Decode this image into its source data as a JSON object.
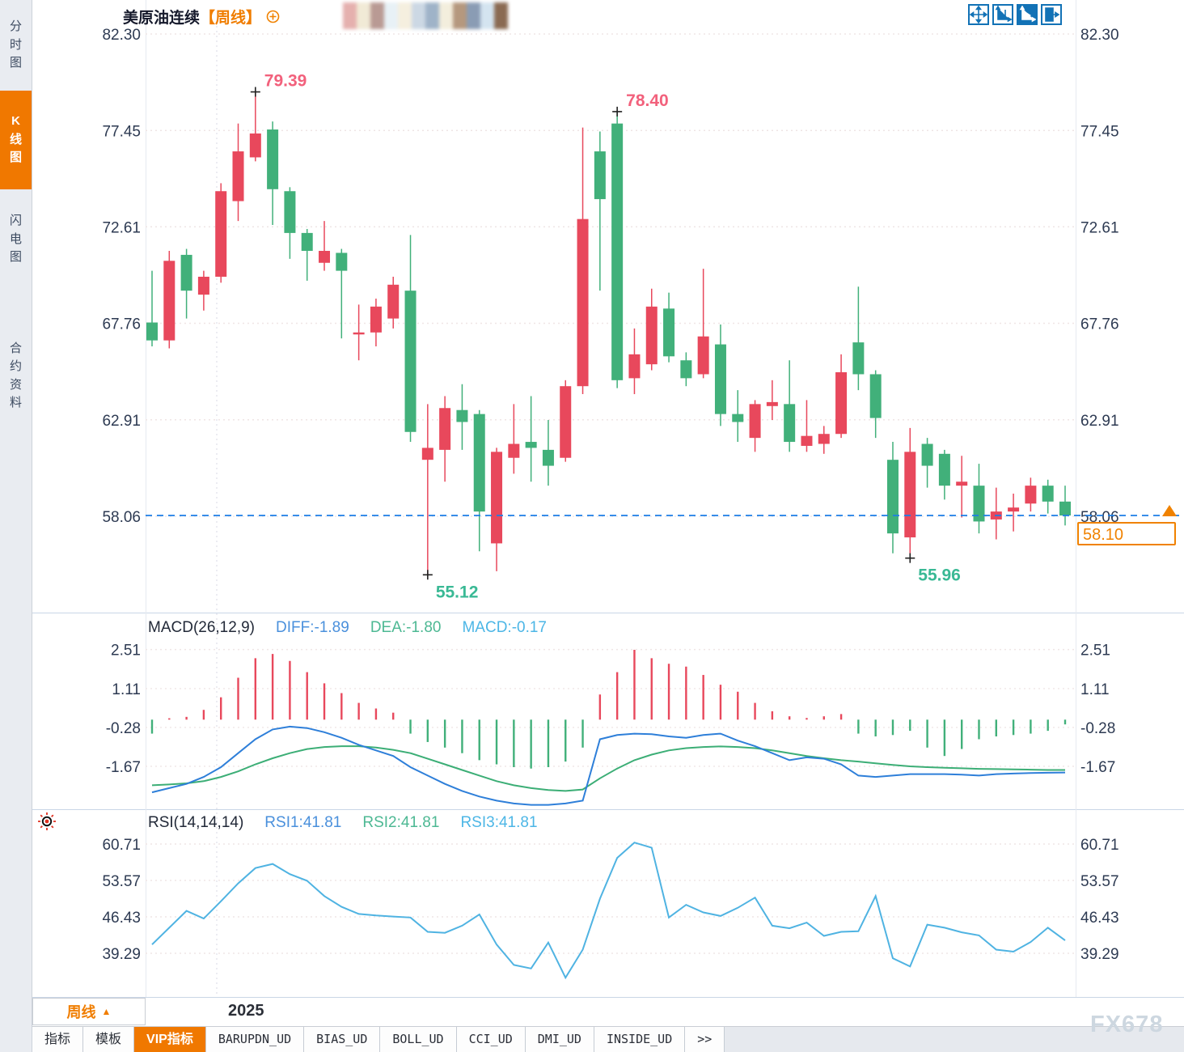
{
  "header": {
    "instrument": "美原油连续",
    "period": "【周线】",
    "mosaic_colors": [
      "#e5b0ae",
      "#f1ead6",
      "#b99a94",
      "#e8f1f6",
      "#f5efdf",
      "#ccd8e4",
      "#9fb3c8",
      "#f3eedd",
      "#b5987e",
      "#8a9cb4",
      "#d4e4f0",
      "#8a6a52"
    ]
  },
  "window": {
    "watermark": "FX678"
  },
  "sidebar": {
    "items": [
      {
        "label": "分时图",
        "active": false
      },
      {
        "label": "K线图",
        "active": true
      },
      {
        "label": "闪电图",
        "active": false
      },
      {
        "label": "合约资料",
        "active": false
      }
    ]
  },
  "toolbar": {
    "icons": [
      {
        "name": "pan-crosshair-icon",
        "active": false
      },
      {
        "name": "axis-range-icon",
        "active": false
      },
      {
        "name": "axis-auto-scale-icon",
        "active": true
      },
      {
        "name": "collapse-panel-icon",
        "active": false
      }
    ]
  },
  "price_tag": {
    "value": "58.10"
  },
  "bottom": {
    "period_label": "周线",
    "period_arrow": "▲",
    "tabs": [
      {
        "label": "指标",
        "active": false,
        "mono": false
      },
      {
        "label": "模板",
        "active": false,
        "mono": false
      },
      {
        "label": "VIP指标",
        "active": true,
        "mono": false
      },
      {
        "label": "BARUPDN_UD",
        "active": false,
        "mono": true
      },
      {
        "label": "BIAS_UD",
        "active": false,
        "mono": true
      },
      {
        "label": "BOLL_UD",
        "active": false,
        "mono": true
      },
      {
        "label": "CCI_UD",
        "active": false,
        "mono": true
      },
      {
        "label": "DMI_UD",
        "active": false,
        "mono": true
      },
      {
        "label": "INSIDE_UD",
        "active": false,
        "mono": true
      },
      {
        "label": ">>",
        "active": false,
        "mono": true
      }
    ]
  },
  "chart_data": {
    "type": "candlestick+indicators",
    "instrument": "美原油连续",
    "interval": "周线",
    "last_price": 58.1,
    "x_axis": {
      "year_label": "2025"
    },
    "colors": {
      "up": "#e8485c",
      "down": "#41b07a",
      "diff_line": "#2e7fd9",
      "dea_line": "#3cae76",
      "rsi_line": "#4fb3e2",
      "legend_blue": "#4a90dc",
      "legend_green": "#4db893",
      "legend_cyan": "#4cb6e6",
      "ann_high": "#f2617c",
      "ann_low": "#3ab995",
      "grid": "#efe5e5",
      "year_grid": "#e0e0ea",
      "divider": "#c9d6e6",
      "axis_text": "#2d3a52",
      "dashed_price": "#1c7de6",
      "accent_orange": "#f07d00"
    },
    "main": {
      "axis_ticks": [
        82.3,
        77.45,
        72.61,
        67.76,
        62.91,
        58.06
      ],
      "candles": {
        "open": [
          67.8,
          66.9,
          71.2,
          69.2,
          70.1,
          73.9,
          76.1,
          77.5,
          74.4,
          72.3,
          70.8,
          71.3,
          67.2,
          67.3,
          68.0,
          69.4,
          60.9,
          61.4,
          63.4,
          63.2,
          56.7,
          61.0,
          61.8,
          61.4,
          61.0,
          64.6,
          76.4,
          77.8,
          65.0,
          65.7,
          68.5,
          65.9,
          65.2,
          66.7,
          63.2,
          62.0,
          63.6,
          63.7,
          61.6,
          61.7,
          62.2,
          66.8,
          65.2,
          60.9,
          57.0,
          61.7,
          61.2,
          59.6,
          59.6,
          57.9,
          58.3,
          58.7,
          59.6,
          58.8
        ],
        "high": [
          70.4,
          71.4,
          71.5,
          70.4,
          74.8,
          77.8,
          79.39,
          77.9,
          74.6,
          72.5,
          72.9,
          71.5,
          68.7,
          69.0,
          70.1,
          72.2,
          63.7,
          64.1,
          64.7,
          63.4,
          61.5,
          63.7,
          64.1,
          62.9,
          64.9,
          77.6,
          77.4,
          78.4,
          67.5,
          69.5,
          69.3,
          66.3,
          70.5,
          67.7,
          64.4,
          63.9,
          64.9,
          65.9,
          63.9,
          62.6,
          66.2,
          69.6,
          65.4,
          61.8,
          62.5,
          62.0,
          61.4,
          61.1,
          60.7,
          59.5,
          59.2,
          60.0,
          59.9,
          59.6
        ],
        "low": [
          66.6,
          66.5,
          68.0,
          68.4,
          69.8,
          72.9,
          75.9,
          72.7,
          71.0,
          69.9,
          70.4,
          67.0,
          65.9,
          66.6,
          67.5,
          61.8,
          55.12,
          59.8,
          61.4,
          56.3,
          55.3,
          60.2,
          59.8,
          59.6,
          60.8,
          64.2,
          69.4,
          64.5,
          64.2,
          65.4,
          65.8,
          64.6,
          65.0,
          62.6,
          61.8,
          61.3,
          62.9,
          61.3,
          61.3,
          61.2,
          62.0,
          64.4,
          62.0,
          56.2,
          55.96,
          59.5,
          58.9,
          58.0,
          57.2,
          56.9,
          57.3,
          58.3,
          58.2,
          57.6
        ],
        "close": [
          66.9,
          70.9,
          69.4,
          70.1,
          74.4,
          76.4,
          77.3,
          74.5,
          72.3,
          71.4,
          71.4,
          70.4,
          67.3,
          68.6,
          69.7,
          62.3,
          61.5,
          63.5,
          62.8,
          58.3,
          61.3,
          61.7,
          61.5,
          60.6,
          64.6,
          73.0,
          74.0,
          64.9,
          66.2,
          68.6,
          66.1,
          65.0,
          67.1,
          63.2,
          62.8,
          63.7,
          63.8,
          61.8,
          62.1,
          62.2,
          65.3,
          65.2,
          63.0,
          57.2,
          61.3,
          60.6,
          59.6,
          59.8,
          57.8,
          58.3,
          58.5,
          59.6,
          58.8,
          58.1
        ]
      },
      "annotations": [
        {
          "index": 6,
          "kind": "high",
          "text": "79.39"
        },
        {
          "index": 27,
          "kind": "high",
          "text": "78.40"
        },
        {
          "index": 16,
          "kind": "low",
          "text": "55.12"
        },
        {
          "index": 44,
          "kind": "low",
          "text": "55.96"
        }
      ]
    },
    "macd": {
      "title": "MACD(26,12,9)",
      "legend": [
        {
          "text": "DIFF:-1.89",
          "color": "#4a90dc"
        },
        {
          "text": "DEA:-1.80",
          "color": "#4db893"
        },
        {
          "text": "MACD:-0.17",
          "color": "#4cb6e6"
        }
      ],
      "axis_ticks": [
        2.51,
        1.11,
        -0.28,
        -1.67
      ],
      "hist": [
        -0.5,
        0.05,
        0.1,
        0.35,
        0.8,
        1.5,
        2.2,
        2.35,
        2.1,
        1.7,
        1.3,
        0.95,
        0.6,
        0.4,
        0.25,
        -0.5,
        -0.8,
        -1.0,
        -1.2,
        -1.45,
        -1.6,
        -1.7,
        -1.75,
        -1.7,
        -1.5,
        -1.0,
        0.9,
        1.7,
        2.5,
        2.2,
        2.0,
        1.9,
        1.6,
        1.25,
        1.0,
        0.6,
        0.3,
        0.12,
        0.06,
        0.12,
        0.2,
        -0.5,
        -0.6,
        -0.55,
        -0.4,
        -1.0,
        -1.3,
        -1.05,
        -0.7,
        -0.6,
        -0.55,
        -0.5,
        -0.4,
        -0.17
      ],
      "diff": [
        -2.6,
        -2.45,
        -2.3,
        -2.05,
        -1.7,
        -1.2,
        -0.7,
        -0.35,
        -0.25,
        -0.3,
        -0.45,
        -0.65,
        -0.9,
        -1.1,
        -1.3,
        -1.7,
        -2.0,
        -2.3,
        -2.55,
        -2.75,
        -2.9,
        -3.0,
        -3.05,
        -3.05,
        -3.0,
        -2.9,
        -0.7,
        -0.55,
        -0.5,
        -0.52,
        -0.6,
        -0.65,
        -0.55,
        -0.5,
        -0.75,
        -0.95,
        -1.2,
        -1.45,
        -1.35,
        -1.4,
        -1.6,
        -2.0,
        -2.05,
        -2.0,
        -1.95,
        -1.95,
        -1.95,
        -1.97,
        -2.0,
        -1.95,
        -1.93,
        -1.91,
        -1.9,
        -1.89
      ],
      "dea": [
        -2.35,
        -2.32,
        -2.28,
        -2.2,
        -2.05,
        -1.85,
        -1.6,
        -1.38,
        -1.2,
        -1.05,
        -0.98,
        -0.95,
        -0.95,
        -1.0,
        -1.08,
        -1.2,
        -1.4,
        -1.6,
        -1.8,
        -2.0,
        -2.2,
        -2.35,
        -2.45,
        -2.52,
        -2.55,
        -2.5,
        -2.1,
        -1.75,
        -1.45,
        -1.25,
        -1.1,
        -1.02,
        -0.98,
        -0.96,
        -0.98,
        -1.02,
        -1.1,
        -1.2,
        -1.3,
        -1.38,
        -1.45,
        -1.5,
        -1.56,
        -1.62,
        -1.67,
        -1.7,
        -1.72,
        -1.74,
        -1.76,
        -1.77,
        -1.78,
        -1.79,
        -1.8,
        -1.8
      ]
    },
    "rsi": {
      "title": "RSI(14,14,14)",
      "legend": [
        {
          "text": "RSI1:41.81",
          "color": "#4a90dc"
        },
        {
          "text": "RSI2:41.81",
          "color": "#4db893"
        },
        {
          "text": "RSI3:41.81",
          "color": "#4cb6e6"
        }
      ],
      "axis_ticks": [
        60.71,
        53.57,
        46.43,
        39.29
      ],
      "values": [
        41.0,
        44.3,
        47.6,
        46.1,
        49.5,
        53.0,
        56.0,
        56.8,
        54.8,
        53.5,
        50.5,
        48.4,
        47.0,
        46.7,
        46.5,
        46.3,
        43.5,
        43.3,
        44.7,
        46.9,
        41.0,
        37.0,
        36.3,
        41.4,
        34.5,
        40.0,
        50.0,
        58.0,
        61.0,
        60.0,
        46.3,
        48.8,
        47.3,
        46.6,
        48.2,
        50.2,
        44.7,
        44.2,
        45.3,
        42.7,
        43.5,
        43.6,
        50.5,
        38.3,
        36.7,
        44.9,
        44.3,
        43.4,
        42.8,
        40.0,
        39.6,
        41.5,
        44.3,
        41.81
      ]
    }
  }
}
